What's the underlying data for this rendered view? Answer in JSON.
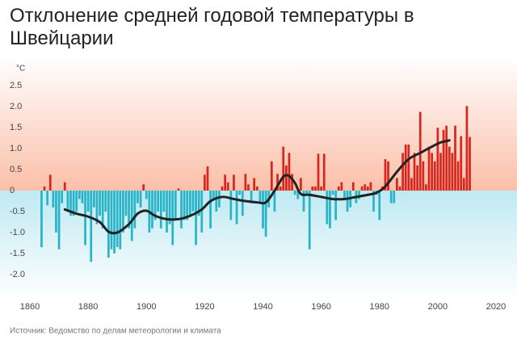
{
  "chart_data": {
    "type": "bar",
    "title": "Отклонение средней годовой температуры в Швейцарии",
    "unit": "°C",
    "source": "Источник: Ведомство по делам метеорологии и климата",
    "x": [
      1864,
      1865,
      1866,
      1867,
      1868,
      1869,
      1870,
      1871,
      1872,
      1873,
      1874,
      1875,
      1876,
      1877,
      1878,
      1879,
      1880,
      1881,
      1882,
      1883,
      1884,
      1885,
      1886,
      1887,
      1888,
      1889,
      1890,
      1891,
      1892,
      1893,
      1894,
      1895,
      1896,
      1897,
      1898,
      1899,
      1900,
      1901,
      1902,
      1903,
      1904,
      1905,
      1906,
      1907,
      1908,
      1909,
      1910,
      1911,
      1912,
      1913,
      1914,
      1915,
      1916,
      1917,
      1918,
      1919,
      1920,
      1921,
      1922,
      1923,
      1924,
      1925,
      1926,
      1927,
      1928,
      1929,
      1930,
      1931,
      1932,
      1933,
      1934,
      1935,
      1936,
      1937,
      1938,
      1939,
      1940,
      1941,
      1942,
      1943,
      1944,
      1945,
      1946,
      1947,
      1948,
      1949,
      1950,
      1951,
      1952,
      1953,
      1954,
      1955,
      1956,
      1957,
      1958,
      1959,
      1960,
      1961,
      1962,
      1963,
      1964,
      1965,
      1966,
      1967,
      1968,
      1969,
      1970,
      1971,
      1972,
      1973,
      1974,
      1975,
      1976,
      1977,
      1978,
      1979,
      1980,
      1981,
      1982,
      1983,
      1984,
      1985,
      1986,
      1987,
      1988,
      1989,
      1990,
      1991,
      1992,
      1993,
      1994,
      1995,
      1996,
      1997,
      1998,
      1999,
      2000,
      2001,
      2002,
      2003,
      2004,
      2005,
      2006,
      2007,
      2008,
      2009,
      2010,
      2011
    ],
    "values": [
      -1.35,
      0.1,
      -0.35,
      0.38,
      -0.4,
      -1.0,
      -1.4,
      -0.3,
      0.2,
      -0.5,
      -0.6,
      -0.6,
      -0.5,
      -0.2,
      -0.3,
      -1.3,
      -0.5,
      -1.7,
      -0.4,
      -0.8,
      -0.6,
      -0.9,
      -0.5,
      -1.6,
      -1.4,
      -1.5,
      -1.35,
      -1.4,
      -1.0,
      -0.6,
      -0.9,
      -1.2,
      -0.9,
      -0.3,
      -0.4,
      0.15,
      -0.2,
      -1.0,
      -0.9,
      -0.7,
      -0.5,
      -0.9,
      -0.5,
      -1.0,
      -0.8,
      -1.3,
      -0.7,
      0.05,
      -0.9,
      -0.7,
      -0.7,
      -0.6,
      -0.5,
      -1.3,
      -0.6,
      -1.0,
      0.38,
      0.58,
      -0.9,
      -0.2,
      -0.5,
      -0.4,
      0.1,
      0.38,
      0.2,
      -0.7,
      0.38,
      -0.8,
      -0.1,
      -0.6,
      0.4,
      0.15,
      -0.3,
      0.3,
      0.1,
      -0.3,
      -0.9,
      -1.1,
      -0.4,
      0.7,
      -0.5,
      0.4,
      0.1,
      1.05,
      0.6,
      0.9,
      0.4,
      -0.1,
      -0.2,
      0.3,
      -0.5,
      -0.1,
      -1.4,
      0.1,
      0.1,
      0.88,
      0.1,
      0.88,
      -0.8,
      -0.9,
      -0.1,
      -0.7,
      0.1,
      0.2,
      -0.2,
      -0.5,
      -0.4,
      0.2,
      -0.3,
      -0.2,
      0.1,
      0.15,
      0.1,
      0.2,
      -0.5,
      -0.1,
      -0.7,
      0.1,
      0.75,
      0.7,
      -0.3,
      -0.3,
      0.3,
      0.1,
      0.9,
      1.1,
      1.1,
      0.3,
      0.9,
      0.6,
      1.88,
      0.7,
      0.15,
      1.05,
      0.9,
      0.7,
      1.5,
      0.9,
      1.45,
      1.55,
      1.05,
      0.9,
      1.55,
      0.7,
      1.3,
      0.3,
      2.02,
      1.28
    ],
    "positive_color": "#d7261e",
    "negative_color": "#29b3c6",
    "trend": {
      "color": "#222222",
      "x": [
        1872,
        1876,
        1880,
        1884,
        1887,
        1890,
        1894,
        1897,
        1900,
        1903,
        1907,
        1911,
        1915,
        1919,
        1922,
        1926,
        1930,
        1934,
        1938,
        1941,
        1944,
        1947,
        1949,
        1951,
        1953,
        1956,
        1960,
        1964,
        1968,
        1972,
        1976,
        1979,
        1982,
        1986,
        1990,
        1994,
        1998,
        2001,
        2004
      ],
      "values": [
        -0.45,
        -0.55,
        -0.62,
        -0.75,
        -0.98,
        -1.0,
        -0.8,
        -0.55,
        -0.48,
        -0.6,
        -0.68,
        -0.68,
        -0.6,
        -0.45,
        -0.25,
        -0.15,
        -0.2,
        -0.25,
        -0.28,
        -0.28,
        0.0,
        0.33,
        0.35,
        0.18,
        -0.08,
        -0.1,
        -0.15,
        -0.2,
        -0.2,
        -0.15,
        -0.1,
        -0.05,
        0.1,
        0.45,
        0.75,
        0.9,
        1.05,
        1.15,
        1.2
      ]
    },
    "xlim": [
      1860,
      2020
    ],
    "xticks": [
      1860,
      1880,
      1900,
      1920,
      1940,
      1960,
      1980,
      2000,
      2020
    ],
    "ylim": [
      -2.6,
      3.2
    ],
    "yticks": [
      {
        "value": 2.5,
        "label": "2.5"
      },
      {
        "value": 2,
        "label": "2.0"
      },
      {
        "value": 1.5,
        "label": "1.5"
      },
      {
        "value": 1,
        "label": "1.0"
      },
      {
        "value": 0.5,
        "label": "0.5"
      },
      0,
      {
        "value": -0.5,
        "label": "-0.5"
      },
      {
        "value": -1,
        "label": "-1.0"
      },
      {
        "value": -1.5,
        "label": "-1.5"
      },
      {
        "value": -2,
        "label": "-2.0"
      }
    ]
  }
}
